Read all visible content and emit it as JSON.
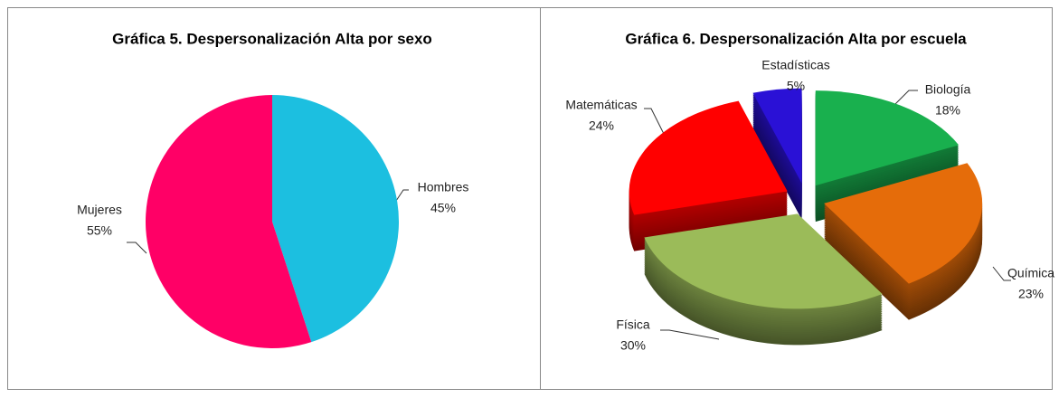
{
  "chart_data": [
    {
      "type": "pie",
      "title": "Gráfica 5. Despersonalización Alta por sexo",
      "categories": [
        "Hombres",
        "Mujeres"
      ],
      "values": [
        45,
        55
      ],
      "value_labels": [
        "45%",
        "55%"
      ],
      "colors": [
        "#1cbfe0",
        "#ff0066"
      ]
    },
    {
      "type": "pie3d",
      "title": "Gráfica 6. Despersonalización Alta por escuela",
      "categories": [
        "Biología",
        "Química",
        "Física",
        "Matemáticas",
        "Estadísticas"
      ],
      "values": [
        18,
        23,
        30,
        24,
        5
      ],
      "value_labels": [
        "18%",
        "23%",
        "30%",
        "24%",
        "5%"
      ],
      "colors": [
        "#19b04e",
        "#e56c0a",
        "#9bbb59",
        "#ff0000",
        "#2a11d6"
      ]
    }
  ]
}
